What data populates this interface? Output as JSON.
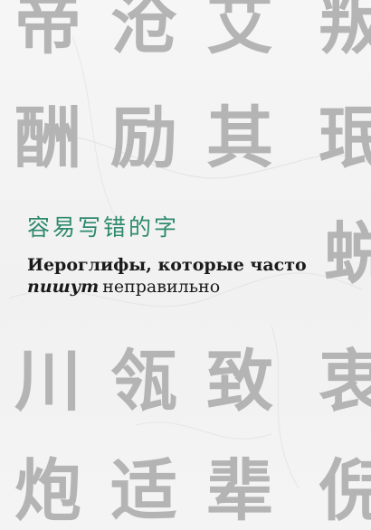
{
  "background_characters": [
    {
      "text": "帝"
    },
    {
      "text": "沧"
    },
    {
      "text": "艾"
    },
    {
      "text": "叛"
    },
    {
      "text": "酬"
    },
    {
      "text": "励"
    },
    {
      "text": "其"
    },
    {
      "text": "珉"
    },
    {
      "text": "蜕"
    },
    {
      "text": "川"
    },
    {
      "text": "瓴"
    },
    {
      "text": "致"
    },
    {
      "text": "衷"
    },
    {
      "text": "炮"
    },
    {
      "text": "适"
    },
    {
      "text": "辈"
    },
    {
      "text": "倪"
    }
  ],
  "title": {
    "chinese": "容易写错的字",
    "russian_line1": "Иероглифы, которые часто",
    "russian_emphasis": "пишут",
    "russian_line2_rest": "неправильно"
  },
  "colors": {
    "background": "#f4f4f4",
    "background_glyphs": "#b4b4b4",
    "chinese_title": "#2f8a6d",
    "russian_text": "#1a1a1a"
  }
}
